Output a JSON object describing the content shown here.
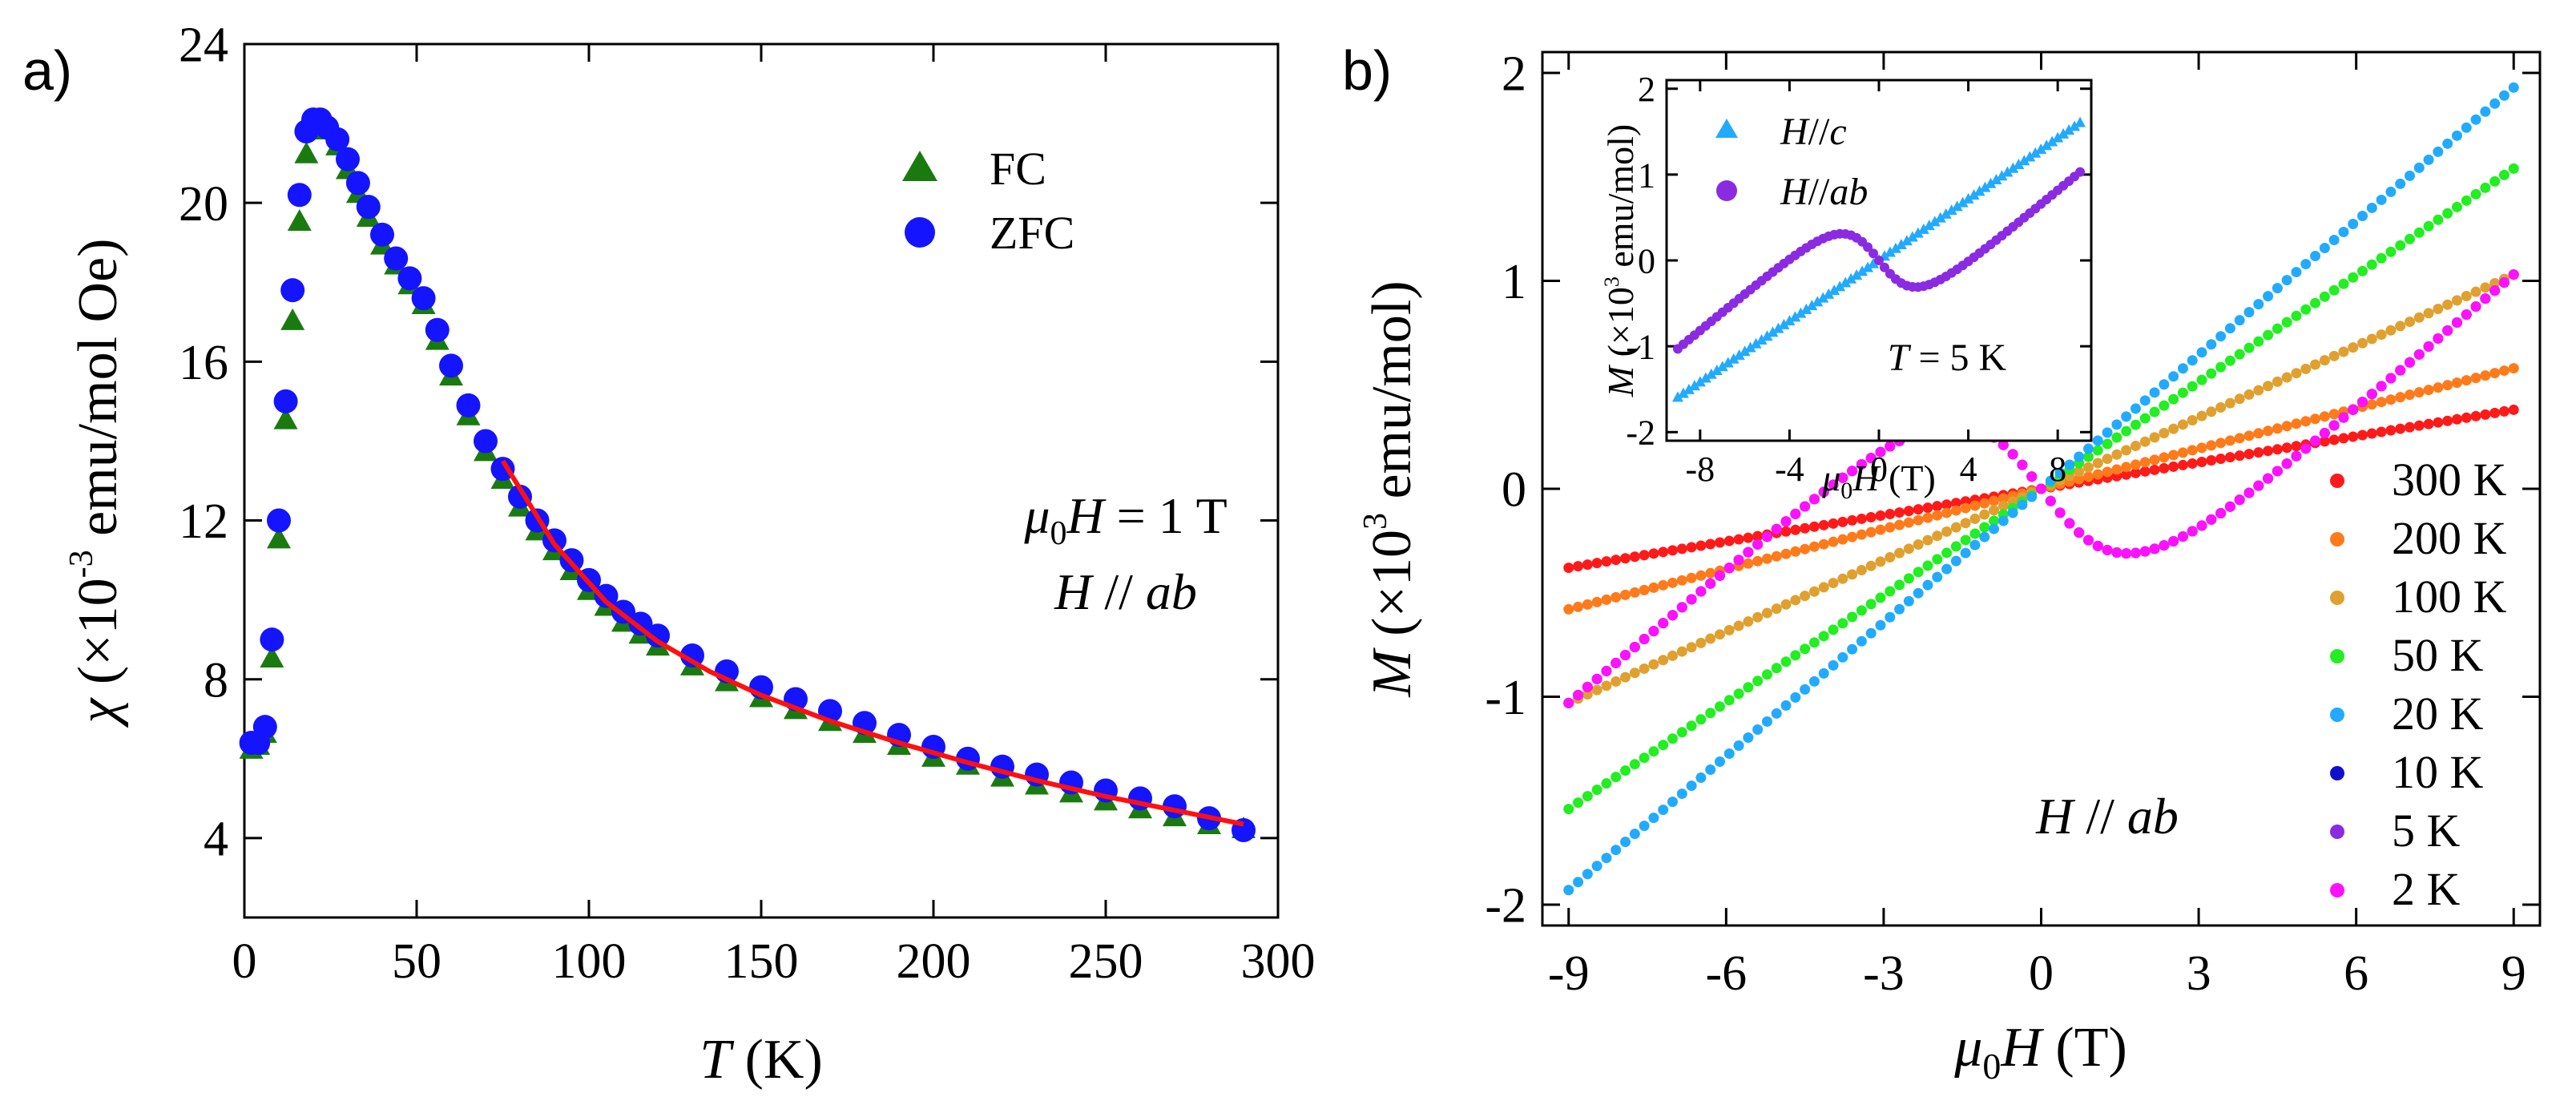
{
  "chart_data": [
    {
      "type": "scatter",
      "panel_label": "a)",
      "xlabel": {
        "var": "T",
        "unit": " (K)"
      },
      "ylabel": {
        "var": "χ",
        "rest": " (×10",
        "exp": "-3",
        "rest2": " emu/mol Oe)"
      },
      "xlim": [
        0,
        300
      ],
      "ylim": [
        2,
        24
      ],
      "xticks": [
        "0",
        "50",
        "100",
        "150",
        "200",
        "250",
        "300"
      ],
      "xtick_values": [
        0,
        50,
        100,
        150,
        200,
        250,
        300
      ],
      "yticks": [
        "4",
        "8",
        "12",
        "16",
        "20",
        "24"
      ],
      "ytick_values": [
        4,
        8,
        12,
        16,
        20,
        24
      ],
      "annotation": {
        "line1_var": "μ",
        "line1_sub": "0",
        "line1_var2": "H",
        "line1_rest": " = 1 T",
        "line2_var": "H",
        "line2_mid": " // ",
        "line2_var2": "ab"
      },
      "series": [
        {
          "name": "FC",
          "marker": "triangle",
          "color": "#1a7a10",
          "x": [
            2,
            4,
            6,
            8,
            10,
            12,
            14,
            16,
            18,
            20,
            22,
            24,
            27,
            30,
            33,
            36,
            40,
            44,
            48,
            52,
            56,
            60,
            65,
            70,
            75,
            80,
            85,
            90,
            95,
            100,
            105,
            110,
            115,
            120,
            130,
            140,
            150,
            160,
            170,
            180,
            190,
            200,
            210,
            220,
            230,
            240,
            250,
            260,
            270,
            280,
            290
          ],
          "y": [
            6.2,
            6.3,
            6.6,
            8.5,
            11.5,
            14.5,
            17.0,
            19.5,
            21.2,
            21.8,
            21.9,
            21.8,
            21.4,
            20.8,
            20.2,
            19.6,
            18.9,
            18.4,
            17.9,
            17.4,
            16.5,
            15.6,
            14.6,
            13.7,
            13.0,
            12.3,
            11.7,
            11.2,
            10.7,
            10.2,
            9.8,
            9.4,
            9.1,
            8.8,
            8.3,
            7.9,
            7.5,
            7.2,
            6.9,
            6.6,
            6.3,
            6.0,
            5.8,
            5.5,
            5.3,
            5.1,
            4.9,
            4.7,
            4.5,
            4.3,
            4.2
          ]
        },
        {
          "name": "ZFC",
          "marker": "circle",
          "color": "#1414ff",
          "x": [
            2,
            4,
            6,
            8,
            10,
            12,
            14,
            16,
            18,
            20,
            22,
            24,
            27,
            30,
            33,
            36,
            40,
            44,
            48,
            52,
            56,
            60,
            65,
            70,
            75,
            80,
            85,
            90,
            95,
            100,
            105,
            110,
            115,
            120,
            130,
            140,
            150,
            160,
            170,
            180,
            190,
            200,
            210,
            220,
            230,
            240,
            250,
            260,
            270,
            280,
            290
          ],
          "y": [
            6.4,
            6.4,
            6.8,
            9.0,
            12.0,
            15.0,
            17.8,
            20.2,
            21.8,
            22.1,
            22.1,
            21.9,
            21.6,
            21.1,
            20.5,
            19.9,
            19.2,
            18.6,
            18.1,
            17.6,
            16.8,
            15.9,
            14.9,
            14.0,
            13.3,
            12.6,
            12.0,
            11.5,
            11.0,
            10.5,
            10.1,
            9.7,
            9.4,
            9.1,
            8.6,
            8.2,
            7.8,
            7.5,
            7.2,
            6.9,
            6.6,
            6.3,
            6.0,
            5.8,
            5.6,
            5.4,
            5.2,
            5.0,
            4.8,
            4.5,
            4.2
          ]
        },
        {
          "name": "fit",
          "marker": "line",
          "color": "#ff1010",
          "x": [
            75,
            90,
            105,
            120,
            135,
            150,
            170,
            190,
            210,
            230,
            250,
            270,
            290
          ],
          "y": [
            13.5,
            11.4,
            9.95,
            8.95,
            8.2,
            7.6,
            6.95,
            6.4,
            5.9,
            5.45,
            5.05,
            4.7,
            4.35
          ]
        }
      ]
    },
    {
      "type": "scatter",
      "panel_label": "b)",
      "xlabel": {
        "var": "μ",
        "sub": "0",
        "var2": "H",
        "unit": " (T)"
      },
      "ylabel": {
        "var": "M",
        "rest": " (×10",
        "exp": "3",
        "rest2": " emu/mol)"
      },
      "xlim": [
        -9.5,
        9.5
      ],
      "ylim": [
        -2.1,
        2.1
      ],
      "xticks": [
        "-9",
        "-6",
        "-3",
        "0",
        "3",
        "6",
        "9"
      ],
      "xtick_values": [
        -9,
        -6,
        -3,
        0,
        3,
        6,
        9
      ],
      "yticks": [
        "2",
        "1",
        "0",
        "-1",
        "-2"
      ],
      "ytick_values": [
        2,
        1,
        0,
        -1,
        -2
      ],
      "annotation": {
        "var": "H",
        "mid": " // ",
        "var2": "ab"
      },
      "series": [
        {
          "name": "300 K",
          "color": "#ff1a1a",
          "shape": "linear",
          "slope": 0.0422
        },
        {
          "name": "200 K",
          "color": "#ff7a1a",
          "shape": "linear",
          "slope": 0.0644
        },
        {
          "name": "100 K",
          "color": "#e0a030",
          "shape": "linear",
          "slope": 0.1144
        },
        {
          "name": "50 K",
          "color": "#22ee22",
          "shape": "linear",
          "slope": 0.1711
        },
        {
          "name": "20 K",
          "color": "#22aaff",
          "shape": "linear",
          "slope": 0.2144
        },
        {
          "name": "10 K",
          "color": "#1010cc",
          "shape": "metamagnetic"
        },
        {
          "name": "5 K",
          "color": "#8a2be2",
          "shape": "metamagnetic"
        },
        {
          "name": "2 K",
          "color": "#ff10ff",
          "shape": "metamagnetic"
        }
      ],
      "inset": {
        "xlabel": {
          "var": "μ",
          "sub": "0",
          "var2": "H",
          "unit": " (T)"
        },
        "ylabel": {
          "var": "M",
          "rest": " (×10",
          "exp": "3",
          "rest2": " emu/mol)"
        },
        "xlim": [
          -9.5,
          9.5
        ],
        "ylim": [
          -2.1,
          2.1
        ],
        "xticks": [
          "-8",
          "-4",
          "0",
          "4",
          "8"
        ],
        "xtick_values": [
          -8,
          -4,
          0,
          4,
          8
        ],
        "yticks": [
          "2",
          "1",
          "0",
          "-1",
          "-2"
        ],
        "ytick_values": [
          2,
          1,
          0,
          -1,
          -2
        ],
        "annotation": {
          "var": "T",
          "rest": " = 5 K"
        },
        "series": [
          {
            "name_var": "H",
            "name_mid": "//",
            "name_var2": "c",
            "color": "#22aaff",
            "marker": "triangle",
            "shape": "linear",
            "slope": 0.1777
          },
          {
            "name_var": "H",
            "name_mid": "//",
            "name_var2": "ab",
            "color": "#8a2be2",
            "marker": "circle",
            "shape": "metamagnetic"
          }
        ]
      }
    }
  ]
}
